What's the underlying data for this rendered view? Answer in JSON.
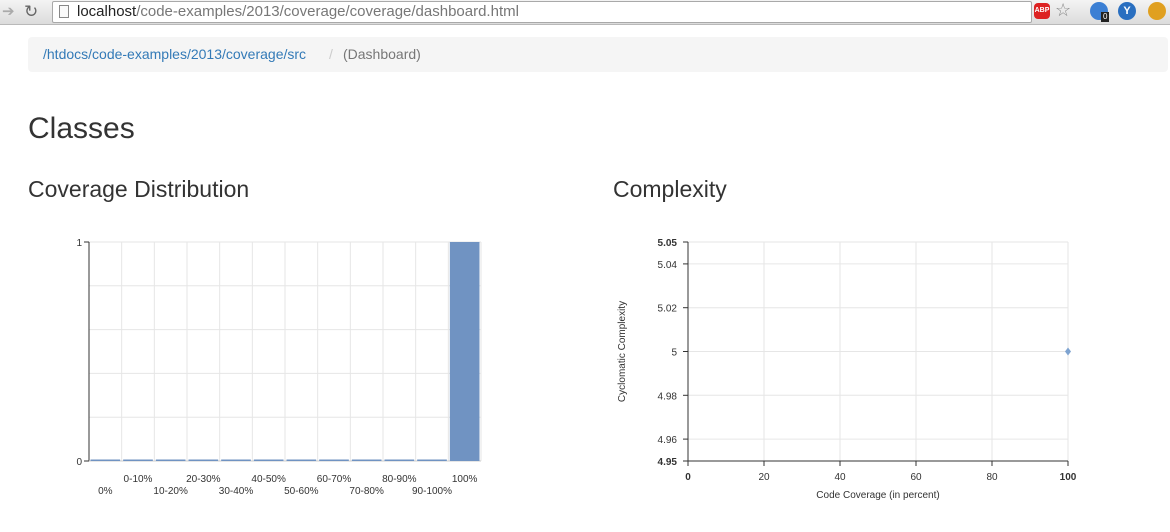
{
  "browser": {
    "url_host": "localhost",
    "url_path": "/code-examples/2013/coverage/coverage/dashboard.html",
    "ext_badge": "0",
    "abp_label": "ABP"
  },
  "breadcrumb": {
    "link": "/htdocs/code-examples/2013/coverage/src",
    "separator": "/",
    "active": "(Dashboard)"
  },
  "page": {
    "title": "Classes",
    "coverage_heading": "Coverage Distribution",
    "complexity_heading": "Complexity"
  },
  "chart_data": [
    {
      "type": "bar",
      "categories": [
        "0%",
        "0-10%",
        "10-20%",
        "20-30%",
        "30-40%",
        "40-50%",
        "50-60%",
        "60-70%",
        "70-80%",
        "80-90%",
        "90-100%",
        "100%"
      ],
      "values": [
        0,
        0,
        0,
        0,
        0,
        0,
        0,
        0,
        0,
        0,
        0,
        1
      ],
      "ylim": [
        0,
        1
      ],
      "yticks": [
        "0",
        "1"
      ],
      "grid": true,
      "color": "#7093c2"
    },
    {
      "type": "scatter",
      "x": [
        100
      ],
      "y": [
        5
      ],
      "xlim": [
        0,
        100
      ],
      "ylim": [
        4.95,
        5.05
      ],
      "xticks": [
        "0",
        "20",
        "40",
        "60",
        "80",
        "100"
      ],
      "yticks": [
        "4.95",
        "4.96",
        "4.98",
        "5",
        "5.02",
        "5.04",
        "5.05"
      ],
      "xlabel": "Code Coverage (in percent)",
      "ylabel": "Cyclomatic Complexity",
      "grid": true,
      "color": "#7ea3d0"
    }
  ]
}
